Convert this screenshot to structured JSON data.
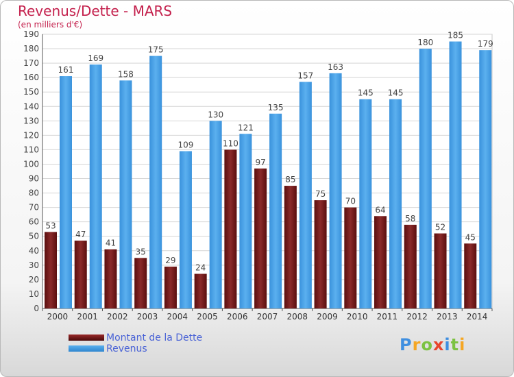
{
  "header": {
    "title": "Revenus/Dette - MARS",
    "subtitle": "(en milliers d'€)"
  },
  "chart_data": {
    "type": "bar",
    "categories": [
      "2000",
      "2001",
      "2002",
      "2003",
      "2004",
      "2005",
      "2006",
      "2007",
      "2008",
      "2009",
      "2010",
      "2011",
      "2012",
      "2013",
      "2014"
    ],
    "series": [
      {
        "name": "Montant de la Dette",
        "color": "#6e1414",
        "values": [
          53,
          47,
          41,
          35,
          29,
          24,
          110,
          97,
          85,
          75,
          70,
          64,
          58,
          52,
          45
        ]
      },
      {
        "name": "Revenus",
        "color": "#3f9be0",
        "values": [
          161,
          169,
          158,
          175,
          109,
          130,
          121,
          135,
          157,
          163,
          145,
          145,
          180,
          185,
          179
        ]
      }
    ],
    "title": "Revenus/Dette - MARS",
    "ylabel": "(en milliers d'€)",
    "ylim": [
      0,
      190
    ],
    "ytick_step": 10,
    "grid": true,
    "legend": "bottom-left",
    "data_labels": true
  },
  "legend": {
    "items": [
      {
        "label": "Montant de la Dette",
        "color": "#6e1414"
      },
      {
        "label": "Revenus",
        "color": "#3f9be0"
      }
    ]
  },
  "logo": {
    "letters": [
      "P",
      "r",
      "o",
      "x",
      "i",
      "t",
      "i"
    ],
    "colors": [
      "#3f8fe0",
      "#f5a623",
      "#7cc242",
      "#e8452c",
      "#3f8fe0",
      "#7cc242",
      "#f5a623"
    ]
  }
}
